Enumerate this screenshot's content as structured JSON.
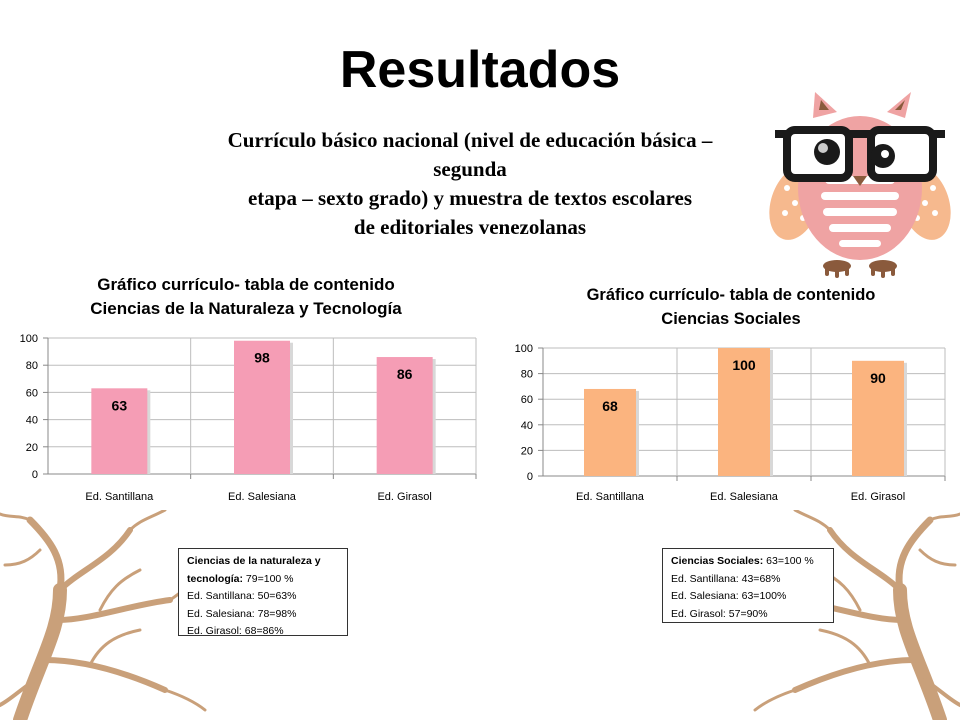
{
  "slide": {
    "title": "Resultados",
    "subtitle_lines": [
      "Currículo básico nacional (nivel de educación básica –",
      "segunda",
      "etapa – sexto grado) y muestra de textos escolares",
      "de editoriales venezolanas"
    ]
  },
  "chart_data": [
    {
      "type": "bar",
      "title": "Gráfico currículo- tabla de contenido\nCiencias de la Naturaleza y Tecnología",
      "categories": [
        "Ed. Santillana",
        "Ed. Salesiana",
        "Ed. Girasol"
      ],
      "values": [
        63,
        98,
        86
      ],
      "ylim": [
        0,
        100
      ],
      "yticks": [
        0,
        20,
        40,
        60,
        80,
        100
      ],
      "grid": true,
      "bar_color": "#f59db5"
    },
    {
      "type": "bar",
      "title": "Gráfico currículo- tabla de contenido\nCiencias Sociales",
      "categories": [
        "Ed. Santillana",
        "Ed. Salesiana",
        "Ed. Girasol"
      ],
      "values": [
        68,
        100,
        90
      ],
      "ylim": [
        0,
        100
      ],
      "yticks": [
        0,
        20,
        40,
        60,
        80,
        100
      ],
      "grid": true,
      "bar_color": "#fbb47f"
    }
  ],
  "notes": {
    "left": {
      "heading_bold": "Ciencias de la naturaleza y tecnología:",
      "heading_value": " 79=100 %",
      "lines": [
        "Ed. Santillana: 50=63%",
        "Ed. Salesiana: 78=98%",
        "Ed. Girasol: 68=86%"
      ]
    },
    "right": {
      "heading_bold": "Ciencias Sociales:",
      "heading_value": " 63=100 %",
      "lines": [
        "Ed. Santillana: 43=68%",
        "Ed. Salesiana: 63=100%",
        "Ed. Girasol: 57=90%"
      ]
    }
  },
  "decorations": {
    "owl": "owl-with-glasses-icon",
    "trees": "bare-tree-branches"
  }
}
